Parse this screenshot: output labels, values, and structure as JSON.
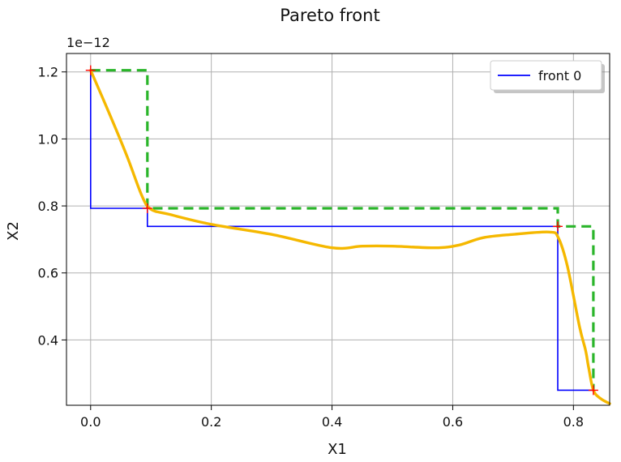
{
  "chart_data": {
    "type": "line",
    "title": "Pareto front",
    "xlabel": "X1",
    "ylabel": "X2",
    "y_offset_label": "1e−12",
    "xlim": [
      -0.04,
      0.86
    ],
    "ylim": [
      0.205,
      1.255
    ],
    "grid": true,
    "legend_position": "top-right",
    "x_ticks": [
      0.0,
      0.2,
      0.4,
      0.6,
      0.8
    ],
    "x_tick_labels": [
      "0.0",
      "0.2",
      "0.4",
      "0.6",
      "0.8"
    ],
    "y_ticks": [
      0.4,
      0.6,
      0.8,
      1.0,
      1.2
    ],
    "y_tick_labels": [
      "0.4",
      "0.6",
      "0.8",
      "1.0",
      "1.2"
    ],
    "series": [
      {
        "name": "front 0",
        "color": "#0000ff",
        "style": "step",
        "points": [
          [
            0.0,
            1.205
          ],
          [
            0.0,
            0.793
          ],
          [
            0.094,
            0.793
          ],
          [
            0.094,
            0.739
          ],
          [
            0.774,
            0.739
          ],
          [
            0.774,
            0.25
          ],
          [
            0.833,
            0.25
          ]
        ]
      }
    ],
    "markers": {
      "color": "#ff0000",
      "symbol": "+",
      "points": [
        [
          0.0,
          1.205
        ],
        [
          0.094,
          0.793
        ],
        [
          0.774,
          0.739
        ],
        [
          0.833,
          0.25
        ]
      ]
    },
    "overlays": [
      {
        "color": "#2ab52a",
        "style": "dashed",
        "points": [
          [
            0.0,
            1.205
          ],
          [
            0.094,
            1.205
          ],
          [
            0.094,
            0.793
          ],
          [
            0.774,
            0.793
          ],
          [
            0.774,
            0.739
          ],
          [
            0.833,
            0.739
          ],
          [
            0.833,
            0.25
          ]
        ]
      },
      {
        "color": "#f5b800",
        "style": "solid",
        "points": [
          [
            0.0,
            1.205
          ],
          [
            0.03,
            1.08
          ],
          [
            0.06,
            0.95
          ],
          [
            0.085,
            0.83
          ],
          [
            0.1,
            0.79
          ],
          [
            0.13,
            0.775
          ],
          [
            0.2,
            0.745
          ],
          [
            0.3,
            0.715
          ],
          [
            0.4,
            0.675
          ],
          [
            0.45,
            0.68
          ],
          [
            0.5,
            0.68
          ],
          [
            0.57,
            0.675
          ],
          [
            0.61,
            0.683
          ],
          [
            0.65,
            0.705
          ],
          [
            0.7,
            0.715
          ],
          [
            0.76,
            0.722
          ],
          [
            0.775,
            0.705
          ],
          [
            0.79,
            0.62
          ],
          [
            0.81,
            0.44
          ],
          [
            0.82,
            0.37
          ],
          [
            0.825,
            0.32
          ],
          [
            0.833,
            0.25
          ],
          [
            0.845,
            0.225
          ],
          [
            0.86,
            0.21
          ]
        ]
      }
    ]
  }
}
